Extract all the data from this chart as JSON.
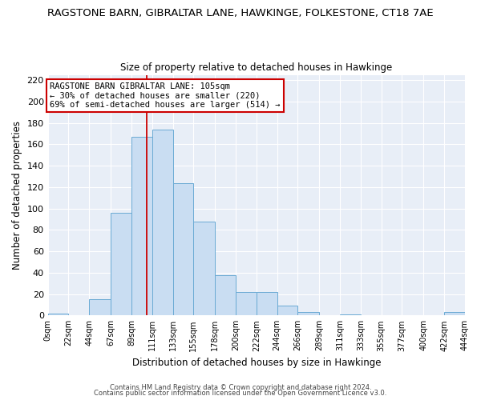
{
  "title": "RAGSTONE BARN, GIBRALTAR LANE, HAWKINGE, FOLKESTONE, CT18 7AE",
  "subtitle": "Size of property relative to detached houses in Hawkinge",
  "xlabel": "Distribution of detached houses by size in Hawkinge",
  "ylabel": "Number of detached properties",
  "bin_edges": [
    0,
    22,
    44,
    67,
    89,
    111,
    133,
    155,
    178,
    200,
    222,
    244,
    266,
    289,
    311,
    333,
    355,
    377,
    400,
    422,
    444
  ],
  "bar_heights": [
    2,
    0,
    15,
    96,
    167,
    174,
    124,
    88,
    38,
    22,
    22,
    9,
    3,
    0,
    1,
    0,
    0,
    0,
    0,
    3
  ],
  "bar_color": "#c9ddf2",
  "bar_edge_color": "#6aaad4",
  "property_line_x": 105,
  "property_line_color": "#cc0000",
  "annotation_title": "RAGSTONE BARN GIBRALTAR LANE: 105sqm",
  "annotation_line1": "← 30% of detached houses are smaller (220)",
  "annotation_line2": "69% of semi-detached houses are larger (514) →",
  "annotation_box_color": "#ffffff",
  "annotation_box_edge": "#cc0000",
  "ylim": [
    0,
    225
  ],
  "tick_labels": [
    "0sqm",
    "22sqm",
    "44sqm",
    "67sqm",
    "89sqm",
    "111sqm",
    "133sqm",
    "155sqm",
    "178sqm",
    "200sqm",
    "222sqm",
    "244sqm",
    "266sqm",
    "289sqm",
    "311sqm",
    "333sqm",
    "355sqm",
    "377sqm",
    "400sqm",
    "422sqm",
    "444sqm"
  ],
  "footer1": "Contains HM Land Registry data © Crown copyright and database right 2024.",
  "footer2": "Contains public sector information licensed under the Open Government Licence v3.0.",
  "fig_bg_color": "#ffffff",
  "plot_bg_color": "#e8eef7",
  "grid_color": "#ffffff",
  "title_fontsize": 9.5,
  "subtitle_fontsize": 8.5,
  "tick_fontsize": 7,
  "ylabel_fontsize": 8.5,
  "xlabel_fontsize": 8.5,
  "footer_fontsize": 6
}
